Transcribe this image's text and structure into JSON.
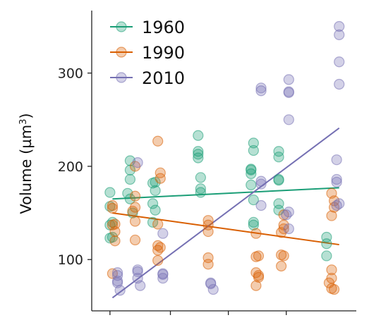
{
  "chart_data": {
    "type": "scatter",
    "ylabel": "Volume (µm³)",
    "ylabel_base": "Volume (µm",
    "ylabel_sup": "3",
    "ylabel_close": ")",
    "y_ticks": [
      100,
      200,
      300
    ],
    "y_tick_labels": [
      "100",
      "200",
      "300"
    ],
    "ylim": [
      45,
      367
    ],
    "xlim": [
      0,
      1
    ],
    "x_ticks": [
      0.05,
      0.29,
      0.52,
      0.75
    ],
    "grid": false,
    "legend": "top-left",
    "series": [
      {
        "name": "1960",
        "color": "#1b9e77",
        "fit": {
          "x": [
            0.06,
            0.96
          ],
          "y": [
            165,
            177
          ]
        },
        "points": [
          {
            "x": 0.05,
            "y": 172
          },
          {
            "x": 0.05,
            "y": 157
          },
          {
            "x": 0.06,
            "y": 140
          },
          {
            "x": 0.05,
            "y": 137
          },
          {
            "x": 0.05,
            "y": 123
          },
          {
            "x": 0.06,
            "y": 124
          },
          {
            "x": 0.13,
            "y": 206
          },
          {
            "x": 0.13,
            "y": 196
          },
          {
            "x": 0.13,
            "y": 186
          },
          {
            "x": 0.12,
            "y": 171
          },
          {
            "x": 0.13,
            "y": 165
          },
          {
            "x": 0.14,
            "y": 150
          },
          {
            "x": 0.22,
            "y": 182
          },
          {
            "x": 0.23,
            "y": 183
          },
          {
            "x": 0.23,
            "y": 174
          },
          {
            "x": 0.22,
            "y": 160
          },
          {
            "x": 0.23,
            "y": 153
          },
          {
            "x": 0.22,
            "y": 140
          },
          {
            "x": 0.4,
            "y": 233
          },
          {
            "x": 0.4,
            "y": 216
          },
          {
            "x": 0.4,
            "y": 213
          },
          {
            "x": 0.4,
            "y": 209
          },
          {
            "x": 0.41,
            "y": 188
          },
          {
            "x": 0.41,
            "y": 176
          },
          {
            "x": 0.41,
            "y": 172
          },
          {
            "x": 0.62,
            "y": 225
          },
          {
            "x": 0.62,
            "y": 217
          },
          {
            "x": 0.61,
            "y": 197
          },
          {
            "x": 0.61,
            "y": 196
          },
          {
            "x": 0.61,
            "y": 192
          },
          {
            "x": 0.61,
            "y": 180
          },
          {
            "x": 0.62,
            "y": 164
          },
          {
            "x": 0.62,
            "y": 140
          },
          {
            "x": 0.62,
            "y": 137
          },
          {
            "x": 0.72,
            "y": 216
          },
          {
            "x": 0.72,
            "y": 210
          },
          {
            "x": 0.72,
            "y": 186
          },
          {
            "x": 0.72,
            "y": 185
          },
          {
            "x": 0.72,
            "y": 160
          },
          {
            "x": 0.72,
            "y": 153
          },
          {
            "x": 0.91,
            "y": 124
          },
          {
            "x": 0.91,
            "y": 117
          },
          {
            "x": 0.91,
            "y": 104
          }
        ]
      },
      {
        "name": "1990",
        "color": "#d95f02",
        "fit": {
          "x": [
            0.06,
            0.96
          ],
          "y": [
            150,
            116
          ]
        },
        "points": [
          {
            "x": 0.06,
            "y": 158
          },
          {
            "x": 0.06,
            "y": 155
          },
          {
            "x": 0.07,
            "y": 138
          },
          {
            "x": 0.06,
            "y": 137
          },
          {
            "x": 0.07,
            "y": 130
          },
          {
            "x": 0.07,
            "y": 120
          },
          {
            "x": 0.06,
            "y": 85
          },
          {
            "x": 0.15,
            "y": 200
          },
          {
            "x": 0.15,
            "y": 168
          },
          {
            "x": 0.15,
            "y": 156
          },
          {
            "x": 0.14,
            "y": 152
          },
          {
            "x": 0.15,
            "y": 141
          },
          {
            "x": 0.15,
            "y": 121
          },
          {
            "x": 0.24,
            "y": 227
          },
          {
            "x": 0.25,
            "y": 193
          },
          {
            "x": 0.25,
            "y": 187
          },
          {
            "x": 0.24,
            "y": 138
          },
          {
            "x": 0.24,
            "y": 115
          },
          {
            "x": 0.25,
            "y": 113
          },
          {
            "x": 0.24,
            "y": 110
          },
          {
            "x": 0.24,
            "y": 99
          },
          {
            "x": 0.44,
            "y": 142
          },
          {
            "x": 0.44,
            "y": 137
          },
          {
            "x": 0.44,
            "y": 130
          },
          {
            "x": 0.44,
            "y": 102
          },
          {
            "x": 0.44,
            "y": 95
          },
          {
            "x": 0.63,
            "y": 128
          },
          {
            "x": 0.64,
            "y": 104
          },
          {
            "x": 0.63,
            "y": 103
          },
          {
            "x": 0.63,
            "y": 86
          },
          {
            "x": 0.64,
            "y": 83
          },
          {
            "x": 0.64,
            "y": 81
          },
          {
            "x": 0.63,
            "y": 72
          },
          {
            "x": 0.74,
            "y": 148
          },
          {
            "x": 0.74,
            "y": 137
          },
          {
            "x": 0.74,
            "y": 133
          },
          {
            "x": 0.73,
            "y": 129
          },
          {
            "x": 0.73,
            "y": 105
          },
          {
            "x": 0.74,
            "y": 104
          },
          {
            "x": 0.73,
            "y": 93
          },
          {
            "x": 0.93,
            "y": 171
          },
          {
            "x": 0.94,
            "y": 163
          },
          {
            "x": 0.94,
            "y": 156
          },
          {
            "x": 0.93,
            "y": 147
          },
          {
            "x": 0.93,
            "y": 89
          },
          {
            "x": 0.93,
            "y": 80
          },
          {
            "x": 0.92,
            "y": 75
          },
          {
            "x": 0.93,
            "y": 69
          },
          {
            "x": 0.94,
            "y": 68
          }
        ]
      },
      {
        "name": "2010",
        "color": "#7570b3",
        "fit": {
          "x": [
            0.06,
            0.96
          ],
          "y": [
            59,
            241
          ]
        },
        "points": [
          {
            "x": 0.08,
            "y": 86
          },
          {
            "x": 0.08,
            "y": 83
          },
          {
            "x": 0.08,
            "y": 77
          },
          {
            "x": 0.08,
            "y": 75
          },
          {
            "x": 0.09,
            "y": 67
          },
          {
            "x": 0.16,
            "y": 204
          },
          {
            "x": 0.16,
            "y": 89
          },
          {
            "x": 0.16,
            "y": 87
          },
          {
            "x": 0.16,
            "y": 80
          },
          {
            "x": 0.17,
            "y": 72
          },
          {
            "x": 0.26,
            "y": 128
          },
          {
            "x": 0.26,
            "y": 85
          },
          {
            "x": 0.26,
            "y": 84
          },
          {
            "x": 0.26,
            "y": 80
          },
          {
            "x": 0.45,
            "y": 75
          },
          {
            "x": 0.45,
            "y": 74
          },
          {
            "x": 0.46,
            "y": 68
          },
          {
            "x": 0.65,
            "y": 284
          },
          {
            "x": 0.65,
            "y": 281
          },
          {
            "x": 0.65,
            "y": 184
          },
          {
            "x": 0.65,
            "y": 181
          },
          {
            "x": 0.65,
            "y": 158
          },
          {
            "x": 0.76,
            "y": 293
          },
          {
            "x": 0.76,
            "y": 280
          },
          {
            "x": 0.76,
            "y": 279
          },
          {
            "x": 0.76,
            "y": 250
          },
          {
            "x": 0.76,
            "y": 151
          },
          {
            "x": 0.75,
            "y": 148
          },
          {
            "x": 0.76,
            "y": 133
          },
          {
            "x": 0.96,
            "y": 350
          },
          {
            "x": 0.96,
            "y": 341
          },
          {
            "x": 0.96,
            "y": 312
          },
          {
            "x": 0.96,
            "y": 288
          },
          {
            "x": 0.95,
            "y": 207
          },
          {
            "x": 0.95,
            "y": 186
          },
          {
            "x": 0.95,
            "y": 183
          },
          {
            "x": 0.96,
            "y": 160
          },
          {
            "x": 0.95,
            "y": 158
          }
        ]
      }
    ]
  }
}
